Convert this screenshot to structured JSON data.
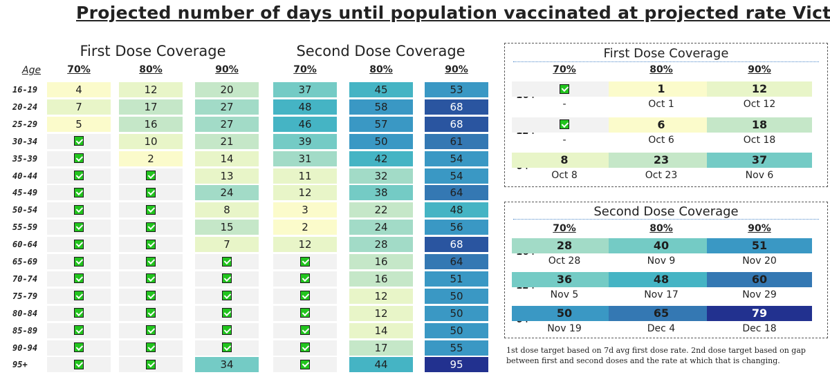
{
  "title": "Projected number of days until population vaccinated at projected rate Victoria",
  "chart_data": [
    {
      "type": "table",
      "age_header": "Age",
      "groups": [
        "First Dose Coverage",
        "Second Dose Coverage"
      ],
      "columns": [
        "70%",
        "80%",
        "90%",
        "70%",
        "80%",
        "90%"
      ],
      "rows": [
        {
          "age": "16-19",
          "values": [
            4,
            12,
            20,
            37,
            45,
            53
          ]
        },
        {
          "age": "20-24",
          "values": [
            7,
            17,
            27,
            48,
            58,
            68
          ]
        },
        {
          "age": "25-29",
          "values": [
            5,
            16,
            27,
            46,
            57,
            68
          ]
        },
        {
          "age": "30-34",
          "values": [
            "done",
            10,
            21,
            39,
            50,
            61
          ]
        },
        {
          "age": "35-39",
          "values": [
            "done",
            2,
            14,
            31,
            42,
            54
          ]
        },
        {
          "age": "40-44",
          "values": [
            "done",
            "done",
            13,
            11,
            32,
            54
          ]
        },
        {
          "age": "45-49",
          "values": [
            "done",
            "done",
            24,
            12,
            38,
            64
          ]
        },
        {
          "age": "50-54",
          "values": [
            "done",
            "done",
            8,
            3,
            22,
            48
          ]
        },
        {
          "age": "55-59",
          "values": [
            "done",
            "done",
            15,
            2,
            24,
            56
          ]
        },
        {
          "age": "60-64",
          "values": [
            "done",
            "done",
            7,
            12,
            28,
            68
          ]
        },
        {
          "age": "65-69",
          "values": [
            "done",
            "done",
            "done",
            "done",
            16,
            64
          ]
        },
        {
          "age": "70-74",
          "values": [
            "done",
            "done",
            "done",
            "done",
            16,
            51
          ]
        },
        {
          "age": "75-79",
          "values": [
            "done",
            "done",
            "done",
            "done",
            12,
            50
          ]
        },
        {
          "age": "80-84",
          "values": [
            "done",
            "done",
            "done",
            "done",
            12,
            50
          ]
        },
        {
          "age": "85-89",
          "values": [
            "done",
            "done",
            "done",
            "done",
            14,
            50
          ]
        },
        {
          "age": "90-94",
          "values": [
            "done",
            "done",
            "done",
            "done",
            17,
            55
          ]
        },
        {
          "age": "95+",
          "values": [
            "done",
            "done",
            34,
            "done",
            44,
            95
          ]
        }
      ]
    },
    {
      "type": "table",
      "title": "First Dose Coverage",
      "columns": [
        "70%",
        "80%",
        "90%"
      ],
      "rows": [
        {
          "label": "16+",
          "values": [
            "done",
            1,
            12
          ],
          "dates": [
            "-",
            "Oct 1",
            "Oct 12"
          ]
        },
        {
          "label": "12+",
          "values": [
            "done",
            6,
            18
          ],
          "dates": [
            "-",
            "Oct 6",
            "Oct 18"
          ]
        },
        {
          "label": "0+",
          "values": [
            8,
            23,
            37
          ],
          "dates": [
            "Oct 8",
            "Oct 23",
            "Nov 6"
          ]
        }
      ]
    },
    {
      "type": "table",
      "title": "Second Dose Coverage",
      "columns": [
        "70%",
        "80%",
        "90%"
      ],
      "rows": [
        {
          "label": "16+",
          "values": [
            28,
            40,
            51
          ],
          "dates": [
            "Oct 28",
            "Nov 9",
            "Nov 20"
          ]
        },
        {
          "label": "12+",
          "values": [
            36,
            48,
            60
          ],
          "dates": [
            "Nov 5",
            "Nov 17",
            "Nov 29"
          ]
        },
        {
          "label": "0+",
          "values": [
            50,
            65,
            79
          ],
          "dates": [
            "Nov 19",
            "Dec 4",
            "Dec 18"
          ]
        }
      ]
    }
  ],
  "note": "1st dose target based on 7d avg first dose rate. 2nd dose target based on gap between first and second doses and the rate at which that is changing.",
  "colors": {
    "done_cell": "#f2f2f2",
    "check": "#22c41e",
    "scale": [
      "#fbfbcb",
      "#e8f5c8",
      "#c5e7c8",
      "#a2dbc7",
      "#74cbc5",
      "#45b4c4",
      "#3a98c4",
      "#3478b3",
      "#2a55a0",
      "#22318f"
    ]
  }
}
